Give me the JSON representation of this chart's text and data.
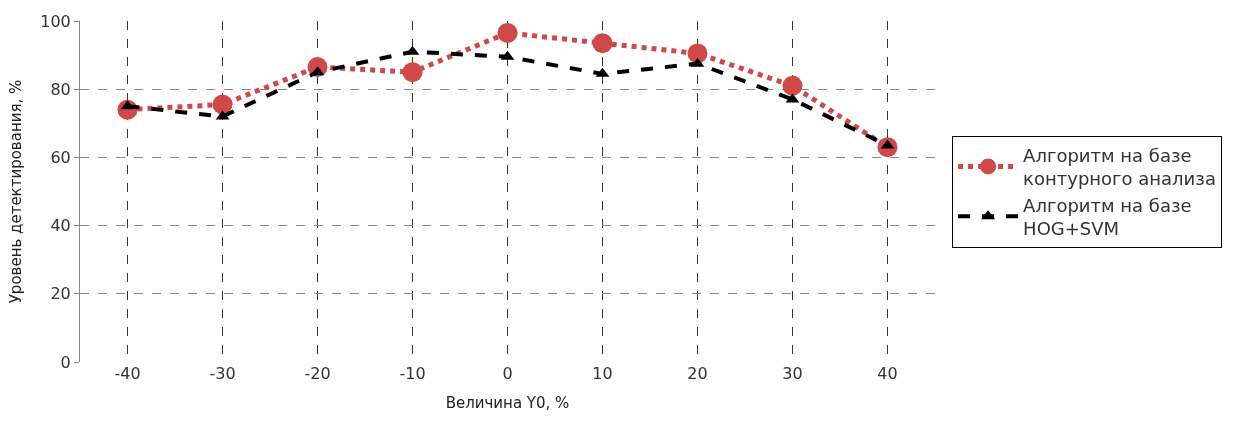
{
  "chart_data": {
    "type": "line",
    "xlabel": "Величина Y0, %",
    "ylabel": "Уровень детектирования, %",
    "x": [
      -40,
      -30,
      -20,
      -10,
      0,
      10,
      20,
      30,
      40
    ],
    "xlim": [
      -45,
      45
    ],
    "xticks": [
      -40,
      -30,
      -20,
      -10,
      0,
      10,
      20,
      30,
      40
    ],
    "ylim": [
      0,
      100
    ],
    "yticks": [
      0,
      20,
      40,
      60,
      80,
      100
    ],
    "grid": true,
    "legend": "right",
    "series": [
      {
        "name": "Алгоритм на базе контурного анализа",
        "color": "#d04848",
        "values": [
          74,
          75.5,
          86.5,
          85,
          96.5,
          93.5,
          90.5,
          81,
          63
        ],
        "marker": "circle",
        "line_style": "dotted"
      },
      {
        "name": "Алгоритм на базе HOG+SVM",
        "color": "#000000",
        "values": [
          75,
          72,
          85,
          91,
          89.5,
          84.5,
          87.5,
          77,
          63.5
        ],
        "marker": "triangle",
        "line_style": "dashed"
      }
    ]
  }
}
